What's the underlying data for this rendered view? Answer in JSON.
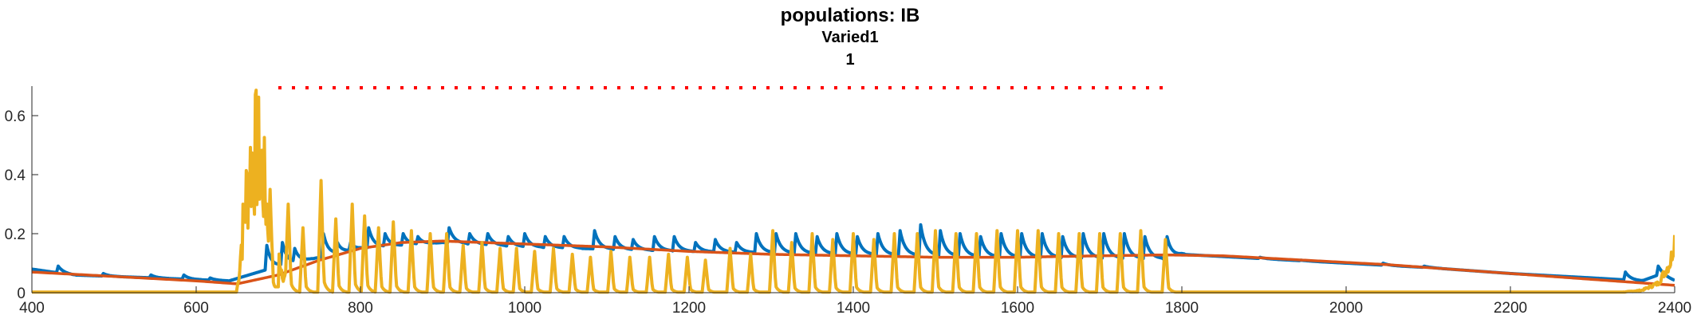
{
  "chart_data": {
    "type": "line",
    "title": "populations: IB",
    "subtitle": "Varied1",
    "subtitle2": "1",
    "xlabel": "",
    "ylabel": "",
    "xlim": [
      400,
      2400
    ],
    "ylim": [
      0,
      0.7
    ],
    "xticks": [
      400,
      600,
      800,
      1000,
      1200,
      1400,
      1600,
      1800,
      2000,
      2200,
      2400
    ],
    "xtick_labels": [
      "400",
      "600",
      "800",
      "1000",
      "1200",
      "1400",
      "1600",
      "1800",
      "2000",
      "2200",
      "2400"
    ],
    "yticks": [
      0,
      0.2,
      0.4,
      0.6
    ],
    "ytick_labels": [
      "0",
      "0.2",
      "0.4",
      "0.6"
    ],
    "grid": false,
    "series": [
      {
        "color": "#0072BD",
        "style": "spiky-line",
        "baseline_points": [
          [
            400,
            0.08
          ],
          [
            450,
            0.06
          ],
          [
            550,
            0.05
          ],
          [
            640,
            0.04
          ],
          [
            700,
            0.09
          ],
          [
            800,
            0.15
          ],
          [
            900,
            0.17
          ],
          [
            1000,
            0.155
          ],
          [
            1200,
            0.14
          ],
          [
            1400,
            0.13
          ],
          [
            1600,
            0.12
          ],
          [
            1780,
            0.115
          ],
          [
            1800,
            0.13
          ],
          [
            1900,
            0.115
          ],
          [
            2000,
            0.1
          ],
          [
            2100,
            0.085
          ],
          [
            2200,
            0.065
          ],
          [
            2300,
            0.05
          ],
          [
            2360,
            0.04
          ],
          [
            2380,
            0.06
          ],
          [
            2400,
            0.04
          ]
        ],
        "peak_times": [
          432,
          487,
          545,
          585,
          617,
          686,
          705,
          720,
          755,
          772,
          788,
          810,
          830,
          852,
          870,
          908,
          933,
          955,
          980,
          1000,
          1025,
          1048,
          1085,
          1110,
          1132,
          1158,
          1182,
          1208,
          1232,
          1258,
          1282,
          1306,
          1330,
          1356,
          1380,
          1405,
          1430,
          1457,
          1482,
          1506,
          1530,
          1555,
          1580,
          1605,
          1630,
          1655,
          1680,
          1705,
          1730,
          1755,
          1782,
          1895,
          1945,
          1995,
          2045,
          2095,
          2340,
          2380
        ],
        "peak_heights": [
          0.09,
          0.065,
          0.06,
          0.06,
          0.05,
          0.16,
          0.17,
          0.15,
          0.2,
          0.17,
          0.17,
          0.22,
          0.2,
          0.2,
          0.19,
          0.22,
          0.2,
          0.2,
          0.19,
          0.2,
          0.19,
          0.19,
          0.21,
          0.19,
          0.18,
          0.19,
          0.19,
          0.17,
          0.18,
          0.17,
          0.2,
          0.2,
          0.2,
          0.19,
          0.2,
          0.19,
          0.2,
          0.21,
          0.23,
          0.21,
          0.2,
          0.19,
          0.2,
          0.2,
          0.2,
          0.19,
          0.2,
          0.2,
          0.2,
          0.19,
          0.19,
          0.12,
          0.11,
          0.1,
          0.1,
          0.09,
          0.07,
          0.09
        ]
      },
      {
        "color": "#D95319",
        "style": "smooth-line",
        "points": [
          [
            400,
            0.07
          ],
          [
            500,
            0.055
          ],
          [
            600,
            0.04
          ],
          [
            650,
            0.03
          ],
          [
            700,
            0.06
          ],
          [
            750,
            0.11
          ],
          [
            800,
            0.15
          ],
          [
            850,
            0.17
          ],
          [
            900,
            0.175
          ],
          [
            1000,
            0.165
          ],
          [
            1100,
            0.155
          ],
          [
            1200,
            0.14
          ],
          [
            1300,
            0.13
          ],
          [
            1400,
            0.125
          ],
          [
            1500,
            0.12
          ],
          [
            1600,
            0.12
          ],
          [
            1700,
            0.125
          ],
          [
            1780,
            0.128
          ],
          [
            1850,
            0.125
          ],
          [
            1950,
            0.11
          ],
          [
            2050,
            0.095
          ],
          [
            2150,
            0.075
          ],
          [
            2250,
            0.055
          ],
          [
            2350,
            0.035
          ],
          [
            2400,
            0.025
          ]
        ]
      },
      {
        "color": "#EDB120",
        "style": "pulse-line",
        "burst_range": [
          650,
          700
        ],
        "burst_max": 0.7,
        "pulse_times": [
          690,
          712,
          730,
          752,
          770,
          790,
          805,
          822,
          840,
          862,
          885,
          905,
          925,
          948,
          970,
          990,
          1012,
          1035,
          1058,
          1080,
          1105,
          1128,
          1152,
          1175,
          1198,
          1220,
          1250,
          1275,
          1302,
          1325,
          1350,
          1375,
          1400,
          1425,
          1450,
          1478,
          1500,
          1525,
          1550,
          1575,
          1600,
          1625,
          1650,
          1675,
          1700,
          1725,
          1750,
          1780
        ],
        "pulse_heights": [
          0.35,
          0.3,
          0.22,
          0.38,
          0.25,
          0.3,
          0.26,
          0.22,
          0.24,
          0.21,
          0.2,
          0.2,
          0.16,
          0.17,
          0.15,
          0.15,
          0.14,
          0.15,
          0.13,
          0.12,
          0.14,
          0.12,
          0.12,
          0.13,
          0.12,
          0.11,
          0.15,
          0.13,
          0.21,
          0.17,
          0.2,
          0.18,
          0.2,
          0.18,
          0.2,
          0.2,
          0.21,
          0.2,
          0.2,
          0.21,
          0.21,
          0.21,
          0.2,
          0.2,
          0.2,
          0.2,
          0.21,
          0.18
        ],
        "tail_rise": [
          [
            2330,
            0.0
          ],
          [
            2360,
            0.01
          ],
          [
            2380,
            0.04
          ],
          [
            2395,
            0.13
          ],
          [
            2400,
            0.23
          ]
        ]
      },
      {
        "color": "#FF0000",
        "style": "dotted",
        "points": [
          [
            700,
            0.695
          ],
          [
            1780,
            0.695
          ]
        ]
      }
    ]
  }
}
